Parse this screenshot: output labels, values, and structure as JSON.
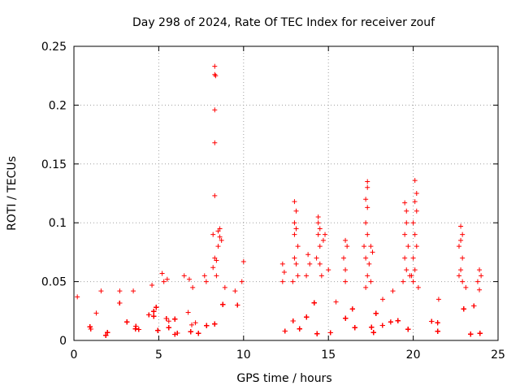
{
  "chart_data": {
    "type": "scatter",
    "title": "Day 298 of 2024, Rate Of TEC Index for receiver zouf",
    "xlabel": "GPS time / hours",
    "ylabel": "ROTI / TECUs",
    "xlim": [
      0,
      25
    ],
    "ylim": [
      0,
      0.25
    ],
    "xticks": [
      0,
      5,
      10,
      15,
      20,
      25
    ],
    "xtick_labels": [
      "0",
      "5",
      "10",
      "15",
      "20",
      "25"
    ],
    "yticks": [
      0,
      0.05,
      0.1,
      0.15,
      0.2,
      0.25
    ],
    "ytick_labels": [
      "0",
      "0.05",
      "0.1",
      "0.15",
      "0.2",
      "0.25"
    ],
    "grid": true,
    "marker": "+",
    "color": "#ff0000",
    "data_gap_hours": [
      10.0,
      12.3
    ],
    "series": [
      {
        "name": "ROTI",
        "points": [
          [
            8.3,
            0.233
          ],
          [
            8.3,
            0.226
          ],
          [
            8.35,
            0.225
          ],
          [
            8.3,
            0.196
          ],
          [
            8.3,
            0.168
          ],
          [
            8.3,
            0.123
          ],
          [
            8.2,
            0.09
          ],
          [
            8.5,
            0.093
          ],
          [
            8.6,
            0.095
          ],
          [
            8.6,
            0.088
          ],
          [
            8.7,
            0.085
          ],
          [
            8.5,
            0.08
          ],
          [
            8.3,
            0.07
          ],
          [
            8.4,
            0.068
          ],
          [
            8.2,
            0.062
          ],
          [
            8.4,
            0.055
          ],
          [
            7.7,
            0.055
          ],
          [
            7.8,
            0.05
          ],
          [
            10.0,
            0.067
          ],
          [
            9.9,
            0.05
          ],
          [
            9.5,
            0.042
          ],
          [
            8.9,
            0.045
          ],
          [
            7.0,
            0.045
          ],
          [
            6.5,
            0.055
          ],
          [
            6.8,
            0.052
          ],
          [
            5.2,
            0.057
          ],
          [
            5.5,
            0.052
          ],
          [
            5.3,
            0.05
          ],
          [
            4.6,
            0.047
          ],
          [
            2.7,
            0.042
          ],
          [
            3.5,
            0.042
          ],
          [
            1.6,
            0.042
          ],
          [
            0.2,
            0.037
          ],
          [
            12.3,
            0.065
          ],
          [
            12.4,
            0.058
          ],
          [
            12.3,
            0.05
          ],
          [
            13.0,
            0.118
          ],
          [
            13.1,
            0.11
          ],
          [
            13.0,
            0.1
          ],
          [
            13.1,
            0.095
          ],
          [
            13.0,
            0.09
          ],
          [
            13.2,
            0.08
          ],
          [
            13.0,
            0.07
          ],
          [
            13.1,
            0.065
          ],
          [
            13.2,
            0.055
          ],
          [
            12.9,
            0.05
          ],
          [
            13.8,
            0.073
          ],
          [
            13.9,
            0.065
          ],
          [
            13.7,
            0.055
          ],
          [
            14.4,
            0.105
          ],
          [
            14.4,
            0.1
          ],
          [
            14.5,
            0.095
          ],
          [
            14.4,
            0.09
          ],
          [
            14.5,
            0.08
          ],
          [
            14.3,
            0.07
          ],
          [
            14.8,
            0.09
          ],
          [
            14.7,
            0.085
          ],
          [
            14.5,
            0.065
          ],
          [
            14.6,
            0.055
          ],
          [
            15.0,
            0.06
          ],
          [
            16.0,
            0.085
          ],
          [
            16.1,
            0.08
          ],
          [
            15.9,
            0.07
          ],
          [
            16.0,
            0.06
          ],
          [
            16.0,
            0.05
          ],
          [
            17.3,
            0.135
          ],
          [
            17.3,
            0.13
          ],
          [
            17.2,
            0.12
          ],
          [
            17.3,
            0.113
          ],
          [
            17.2,
            0.1
          ],
          [
            17.3,
            0.09
          ],
          [
            17.1,
            0.08
          ],
          [
            17.2,
            0.07
          ],
          [
            17.5,
            0.08
          ],
          [
            17.6,
            0.075
          ],
          [
            17.4,
            0.065
          ],
          [
            17.3,
            0.055
          ],
          [
            17.5,
            0.05
          ],
          [
            17.2,
            0.045
          ],
          [
            19.5,
            0.117
          ],
          [
            19.6,
            0.11
          ],
          [
            19.6,
            0.1
          ],
          [
            19.5,
            0.09
          ],
          [
            19.7,
            0.08
          ],
          [
            19.5,
            0.07
          ],
          [
            19.6,
            0.06
          ],
          [
            19.8,
            0.055
          ],
          [
            19.4,
            0.05
          ],
          [
            20.1,
            0.136
          ],
          [
            20.2,
            0.125
          ],
          [
            20.1,
            0.118
          ],
          [
            20.2,
            0.11
          ],
          [
            20.0,
            0.1
          ],
          [
            20.1,
            0.09
          ],
          [
            20.2,
            0.08
          ],
          [
            20.0,
            0.07
          ],
          [
            20.1,
            0.06
          ],
          [
            19.9,
            0.055
          ],
          [
            20.0,
            0.05
          ],
          [
            20.3,
            0.045
          ],
          [
            18.8,
            0.042
          ],
          [
            18.2,
            0.035
          ],
          [
            22.8,
            0.097
          ],
          [
            22.9,
            0.09
          ],
          [
            22.8,
            0.085
          ],
          [
            22.7,
            0.08
          ],
          [
            22.9,
            0.07
          ],
          [
            22.8,
            0.06
          ],
          [
            22.7,
            0.055
          ],
          [
            22.9,
            0.05
          ],
          [
            23.1,
            0.045
          ],
          [
            23.9,
            0.06
          ],
          [
            24.0,
            0.055
          ],
          [
            23.8,
            0.05
          ],
          [
            23.9,
            0.043
          ],
          [
            21.5,
            0.035
          ]
        ],
        "band_note": "Dense cloud of points roughly 0.003-0.035 TECUs from 0-10 h and 12.3-24 h"
      }
    ]
  }
}
